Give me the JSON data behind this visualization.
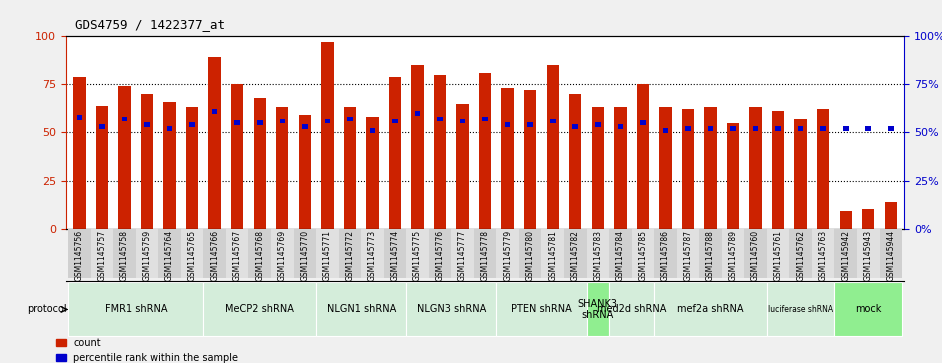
{
  "title": "GDS4759 / 1422377_at",
  "samples": [
    "GSM1145756",
    "GSM1145757",
    "GSM1145758",
    "GSM1145759",
    "GSM1145764",
    "GSM1145765",
    "GSM1145766",
    "GSM1145767",
    "GSM1145768",
    "GSM1145769",
    "GSM1145770",
    "GSM1145771",
    "GSM1145772",
    "GSM1145773",
    "GSM1145774",
    "GSM1145775",
    "GSM1145776",
    "GSM1145777",
    "GSM1145778",
    "GSM1145779",
    "GSM1145780",
    "GSM1145781",
    "GSM1145782",
    "GSM1145783",
    "GSM1145784",
    "GSM1145785",
    "GSM1145786",
    "GSM1145787",
    "GSM1145788",
    "GSM1145789",
    "GSM1145760",
    "GSM1145761",
    "GSM1145762",
    "GSM1145763",
    "GSM1145942",
    "GSM1145943",
    "GSM1145944"
  ],
  "count_values": [
    79,
    64,
    74,
    70,
    66,
    63,
    89,
    75,
    68,
    63,
    59,
    97,
    63,
    58,
    79,
    85,
    80,
    65,
    81,
    73,
    72,
    85,
    70,
    63,
    63,
    75,
    63,
    62,
    63,
    55,
    63,
    61,
    57,
    62,
    9,
    10,
    14
  ],
  "percentile_values": [
    58,
    53,
    57,
    54,
    52,
    54,
    61,
    55,
    55,
    56,
    53,
    56,
    57,
    51,
    56,
    60,
    57,
    56,
    57,
    54,
    54,
    56,
    53,
    54,
    53,
    55,
    51,
    52,
    52,
    52,
    52,
    52,
    52,
    52,
    52,
    52,
    52
  ],
  "protocol_groups": [
    {
      "label": "FMR1 shRNA",
      "start": 0,
      "end": 5
    },
    {
      "label": "MeCP2 shRNA",
      "start": 6,
      "end": 10
    },
    {
      "label": "NLGN1 shRNA",
      "start": 11,
      "end": 14
    },
    {
      "label": "NLGN3 shRNA",
      "start": 15,
      "end": 18
    },
    {
      "label": "PTEN shRNA",
      "start": 19,
      "end": 22
    },
    {
      "label": "SHANK3\nshRNA",
      "start": 23,
      "end": 23
    },
    {
      "label": "med2d shRNA",
      "start": 24,
      "end": 25
    },
    {
      "label": "mef2a shRNA",
      "start": 26,
      "end": 30
    },
    {
      "label": "luciferase shRNA",
      "start": 31,
      "end": 33
    },
    {
      "label": "mock",
      "start": 34,
      "end": 36
    }
  ],
  "bright_groups": [
    "SHANK3\nshRNA",
    "mock"
  ],
  "bar_color": "#cc2200",
  "percentile_color": "#0000cc",
  "plot_bg": "#ffffff",
  "fig_bg": "#f0f0f0",
  "ylim": [
    0,
    100
  ],
  "dotted_lines": [
    25,
    50,
    75
  ],
  "normal_group_color": "#d4edda",
  "bright_group_color": "#90ee90"
}
